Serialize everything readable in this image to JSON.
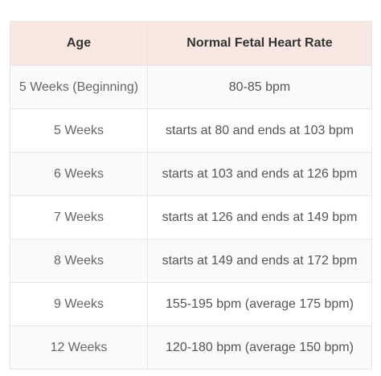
{
  "table": {
    "headers": [
      "Age",
      "Normal Fetal Heart Rate"
    ],
    "rows": [
      [
        "5 Weeks (Beginning)",
        "80-85 bpm"
      ],
      [
        "5 Weeks",
        "starts at 80 and ends at 103 bpm"
      ],
      [
        "6 Weeks",
        "starts at 103 and ends at 126 bpm"
      ],
      [
        "7 Weeks",
        "starts at 126 and ends at 149 bpm"
      ],
      [
        "8 Weeks",
        "starts at 149 and ends at 172 bpm"
      ],
      [
        "9 Weeks",
        "155-195 bpm (average 175 bpm)"
      ],
      [
        "12 Weeks",
        "120-180 bpm (average 150 bpm)"
      ]
    ]
  },
  "colors": {
    "header_bg": "#f8e8e1",
    "border": "#e6e6e6",
    "row_alt_bg": "#fafafa"
  }
}
